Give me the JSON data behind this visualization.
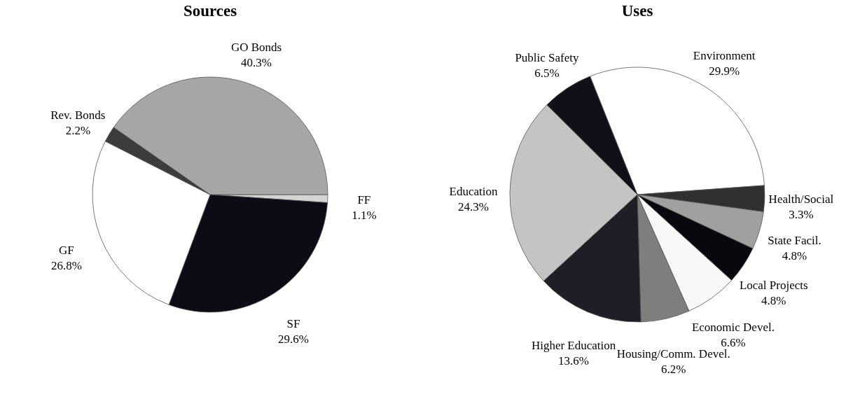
{
  "chart_data": [
    {
      "type": "pie",
      "title": "Sources",
      "categories": [
        "FF",
        "SF",
        "GF",
        "Rev. Bonds",
        "GO Bonds"
      ],
      "values": [
        1.1,
        29.6,
        26.8,
        2.2,
        40.3
      ],
      "value_labels": [
        "1.1%",
        "29.6%",
        "26.8%",
        "2.2%",
        "40.3%"
      ],
      "colors": [
        "#d4d4d4",
        "#0c0c16",
        "#ffffff",
        "#3c3c3c",
        "#a6a6a6"
      ]
    },
    {
      "type": "pie",
      "title": "Uses",
      "categories": [
        "Environment",
        "Health/Social",
        "State Facil.",
        "Local Projects",
        "Economic Devel.",
        "Housing/Comm. Devel.",
        "Higher Education",
        "Education",
        "Public Safety"
      ],
      "values": [
        29.9,
        3.3,
        4.8,
        4.8,
        6.6,
        6.2,
        13.6,
        24.3,
        6.5
      ],
      "value_labels": [
        "29.9%",
        "3.3%",
        "4.8%",
        "4.8%",
        "6.6%",
        "6.2%",
        "13.6%",
        "24.3%",
        "6.5%"
      ],
      "colors": [
        "#ffffff",
        "#303030",
        "#a0a0a0",
        "#08080f",
        "#f8f8f8",
        "#7e7e7e",
        "#1e1e26",
        "#c4c4c4",
        "#101018"
      ]
    }
  ]
}
